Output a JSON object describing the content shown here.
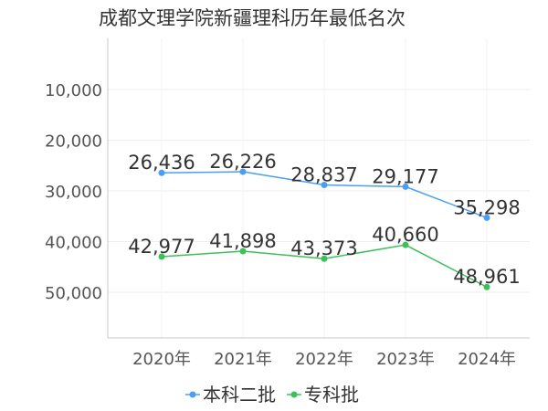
{
  "chart_data": {
    "type": "line",
    "title": "成都文理学院新疆理科历年最低名次",
    "categories": [
      "2020年",
      "2021年",
      "2022年",
      "2023年",
      "2024年"
    ],
    "series": [
      {
        "name": "本科二批",
        "color": "#4a9ff5",
        "values": [
          26436,
          26226,
          28837,
          29177,
          35298
        ],
        "labels": [
          "26,436",
          "26,226",
          "28,837",
          "29,177",
          "35,298"
        ]
      },
      {
        "name": "专科批",
        "color": "#3cc05a",
        "values": [
          42977,
          41898,
          43373,
          40660,
          48961
        ],
        "labels": [
          "42,977",
          "41,898",
          "43,373",
          "40,660",
          "48,961"
        ]
      }
    ],
    "y_ticks": [
      10000,
      20000,
      30000,
      40000,
      50000
    ],
    "y_tick_labels": [
      "10,000",
      "20,000",
      "30,000",
      "40,000",
      "50,000"
    ],
    "ylim": [
      0,
      60000
    ],
    "y_inverted": true,
    "grid": true,
    "legend_position": "bottom-center",
    "xlabel": "",
    "ylabel": ""
  }
}
